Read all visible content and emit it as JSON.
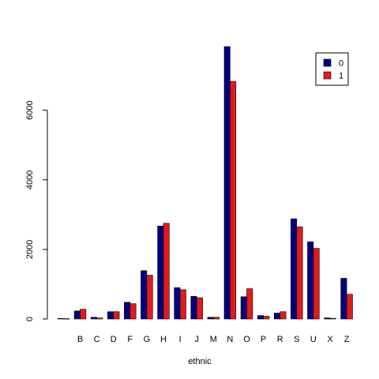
{
  "chart_data": {
    "type": "bar",
    "layout": "grouped",
    "title": "",
    "xlabel": "ethnic",
    "ylabel": "",
    "categories": [
      "",
      "B",
      "C",
      "D",
      "F",
      "G",
      "H",
      "I",
      "J",
      "M",
      "N",
      "O",
      "P",
      "R",
      "S",
      "U",
      "X",
      "Z"
    ],
    "series": [
      {
        "name": "0",
        "color": "#00007F",
        "values": [
          15,
          230,
          50,
          210,
          480,
          1390,
          2670,
          900,
          650,
          50,
          7830,
          640,
          100,
          170,
          2880,
          2220,
          30,
          1170
        ]
      },
      {
        "name": "1",
        "color": "#E31A1C",
        "values": [
          10,
          280,
          30,
          210,
          440,
          1260,
          2750,
          840,
          610,
          50,
          6830,
          870,
          80,
          210,
          2650,
          2030,
          20,
          710
        ]
      }
    ],
    "y_ticks": [
      "0",
      "2000",
      "4000",
      "6000"
    ],
    "ylim": [
      0,
      7830
    ],
    "legend": {
      "position": "top-right",
      "entries": [
        "0",
        "1"
      ]
    },
    "grid": false,
    "bar_border_color": "#000000"
  }
}
